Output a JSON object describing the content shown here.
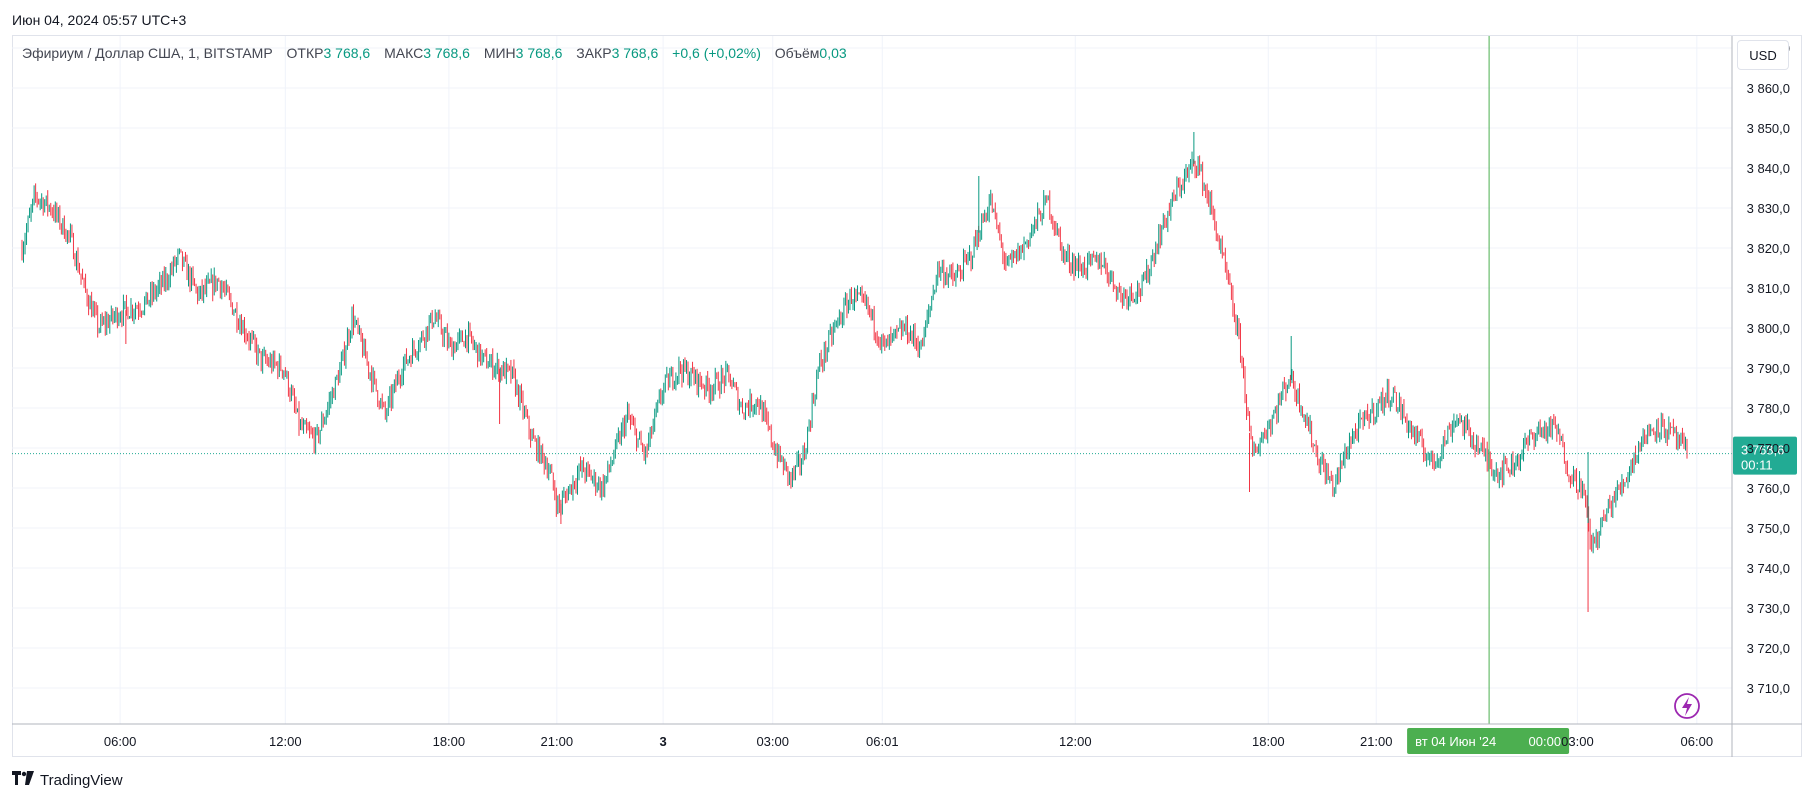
{
  "header": {
    "timestamp": "Июн 04, 2024 05:57 UTC+3"
  },
  "legend": {
    "symbol": "Эфириум / Доллар США, 1, BITSTAMP",
    "open_label": "ОТКР",
    "open_value": "3 768,6",
    "high_label": "МАКС",
    "high_value": "3 768,6",
    "low_label": "МИН",
    "low_value": "3 768,6",
    "close_label": "ЗАКР",
    "close_value": "3 768,6",
    "change": "+0,6 (+0,02%)",
    "volume_label": "Объём",
    "volume_value": "0,03"
  },
  "currency_button": "USD",
  "price_badge": {
    "price": "3 768,6",
    "countdown": "00:11"
  },
  "crosshair_label": {
    "date": "вт 04 Июн '24",
    "time": "00:00"
  },
  "branding": {
    "name": "TradingView"
  },
  "colors": {
    "up": "#089981",
    "down": "#f23645",
    "crosshair": "#4caf50",
    "badge": "#22ab94",
    "accent": "#9c27b0"
  },
  "icons": {
    "alert": "lightning-icon"
  },
  "chart_data": {
    "type": "candlestick",
    "symbol": "ETH/USD",
    "exchange": "BITSTAMP",
    "interval": "1",
    "ylim": [
      3701,
      3873
    ],
    "y_ticks": [
      3710,
      3720,
      3730,
      3740,
      3750,
      3760,
      3770,
      3780,
      3790,
      3800,
      3810,
      3820,
      3830,
      3840,
      3850,
      3860,
      3870
    ],
    "x_ticks": [
      {
        "label": "06:00",
        "pos": 0.06
      },
      {
        "label": "12:00",
        "pos": 0.161
      },
      {
        "label": "18:00",
        "pos": 0.261
      },
      {
        "label": "21:00",
        "pos": 0.327
      },
      {
        "label": "3",
        "pos": 0.392,
        "bold": true
      },
      {
        "label": "03:00",
        "pos": 0.459
      },
      {
        "label": "06:01",
        "pos": 0.526
      },
      {
        "label": "12:00",
        "pos": 0.644
      },
      {
        "label": "18:00",
        "pos": 0.762
      },
      {
        "label": "21:00",
        "pos": 0.828
      },
      {
        "label": "03:00",
        "pos": 0.951
      },
      {
        "label": "06:00",
        "pos": 1.024
      }
    ],
    "last_price": 3768.6,
    "crosshair_pos": 0.897,
    "series": [
      {
        "t": 0.0,
        "p": 3820
      },
      {
        "t": 0.008,
        "p": 3833
      },
      {
        "t": 0.018,
        "p": 3830
      },
      {
        "t": 0.03,
        "p": 3822
      },
      {
        "t": 0.038,
        "p": 3810
      },
      {
        "t": 0.047,
        "p": 3800
      },
      {
        "t": 0.06,
        "p": 3804
      },
      {
        "t": 0.075,
        "p": 3806
      },
      {
        "t": 0.088,
        "p": 3812
      },
      {
        "t": 0.096,
        "p": 3818
      },
      {
        "t": 0.108,
        "p": 3808
      },
      {
        "t": 0.12,
        "p": 3812
      },
      {
        "t": 0.133,
        "p": 3802
      },
      {
        "t": 0.146,
        "p": 3792
      },
      {
        "t": 0.16,
        "p": 3790
      },
      {
        "t": 0.17,
        "p": 3775
      },
      {
        "t": 0.18,
        "p": 3772
      },
      {
        "t": 0.195,
        "p": 3790
      },
      {
        "t": 0.202,
        "p": 3803
      },
      {
        "t": 0.212,
        "p": 3790
      },
      {
        "t": 0.222,
        "p": 3778
      },
      {
        "t": 0.232,
        "p": 3790
      },
      {
        "t": 0.245,
        "p": 3798
      },
      {
        "t": 0.252,
        "p": 3803
      },
      {
        "t": 0.262,
        "p": 3795
      },
      {
        "t": 0.272,
        "p": 3798
      },
      {
        "t": 0.282,
        "p": 3792
      },
      {
        "t": 0.3,
        "p": 3788
      },
      {
        "t": 0.312,
        "p": 3772
      },
      {
        "t": 0.322,
        "p": 3765
      },
      {
        "t": 0.328,
        "p": 3755
      },
      {
        "t": 0.342,
        "p": 3765
      },
      {
        "t": 0.355,
        "p": 3760
      },
      {
        "t": 0.37,
        "p": 3778
      },
      {
        "t": 0.381,
        "p": 3768
      },
      {
        "t": 0.392,
        "p": 3785
      },
      {
        "t": 0.402,
        "p": 3790
      },
      {
        "t": 0.42,
        "p": 3785
      },
      {
        "t": 0.432,
        "p": 3788
      },
      {
        "t": 0.44,
        "p": 3780
      },
      {
        "t": 0.45,
        "p": 3782
      },
      {
        "t": 0.46,
        "p": 3770
      },
      {
        "t": 0.47,
        "p": 3762
      },
      {
        "t": 0.478,
        "p": 3768
      },
      {
        "t": 0.487,
        "p": 3790
      },
      {
        "t": 0.497,
        "p": 3800
      },
      {
        "t": 0.507,
        "p": 3808
      },
      {
        "t": 0.517,
        "p": 3805
      },
      {
        "t": 0.527,
        "p": 3795
      },
      {
        "t": 0.54,
        "p": 3800
      },
      {
        "t": 0.55,
        "p": 3795
      },
      {
        "t": 0.56,
        "p": 3815
      },
      {
        "t": 0.57,
        "p": 3812
      },
      {
        "t": 0.58,
        "p": 3818
      },
      {
        "t": 0.592,
        "p": 3832
      },
      {
        "t": 0.602,
        "p": 3815
      },
      {
        "t": 0.612,
        "p": 3820
      },
      {
        "t": 0.627,
        "p": 3832
      },
      {
        "t": 0.637,
        "p": 3818
      },
      {
        "t": 0.647,
        "p": 3815
      },
      {
        "t": 0.66,
        "p": 3817
      },
      {
        "t": 0.672,
        "p": 3808
      },
      {
        "t": 0.685,
        "p": 3810
      },
      {
        "t": 0.697,
        "p": 3825
      },
      {
        "t": 0.707,
        "p": 3835
      },
      {
        "t": 0.718,
        "p": 3842
      },
      {
        "t": 0.727,
        "p": 3830
      },
      {
        "t": 0.737,
        "p": 3812
      },
      {
        "t": 0.745,
        "p": 3795
      },
      {
        "t": 0.752,
        "p": 3768
      },
      {
        "t": 0.765,
        "p": 3778
      },
      {
        "t": 0.775,
        "p": 3788
      },
      {
        "t": 0.783,
        "p": 3780
      },
      {
        "t": 0.792,
        "p": 3768
      },
      {
        "t": 0.802,
        "p": 3760
      },
      {
        "t": 0.812,
        "p": 3772
      },
      {
        "t": 0.823,
        "p": 3778
      },
      {
        "t": 0.837,
        "p": 3784
      },
      {
        "t": 0.85,
        "p": 3774
      },
      {
        "t": 0.863,
        "p": 3766
      },
      {
        "t": 0.877,
        "p": 3778
      },
      {
        "t": 0.891,
        "p": 3770
      },
      {
        "t": 0.902,
        "p": 3764
      },
      {
        "t": 0.912,
        "p": 3766
      },
      {
        "t": 0.925,
        "p": 3774
      },
      {
        "t": 0.938,
        "p": 3775
      },
      {
        "t": 0.946,
        "p": 3764
      },
      {
        "t": 0.954,
        "p": 3760
      },
      {
        "t": 0.96,
        "p": 3745
      },
      {
        "t": 0.97,
        "p": 3755
      },
      {
        "t": 0.98,
        "p": 3762
      },
      {
        "t": 0.99,
        "p": 3772
      },
      {
        "t": 1.0,
        "p": 3776
      },
      {
        "t": 1.01,
        "p": 3773
      },
      {
        "t": 1.018,
        "p": 3768.6
      }
    ],
    "spikes": [
      {
        "t": 0.0635,
        "p": 3796
      },
      {
        "t": 0.292,
        "p": 3776
      },
      {
        "t": 0.3295,
        "p": 3751
      },
      {
        "t": 0.7505,
        "p": 3759
      },
      {
        "t": 0.7165,
        "p": 3849
      },
      {
        "t": 0.585,
        "p": 3838
      },
      {
        "t": 0.9575,
        "p": 3729
      },
      {
        "t": 0.776,
        "p": 3798
      },
      {
        "t": 0.9575,
        "p": 3769
      }
    ]
  }
}
